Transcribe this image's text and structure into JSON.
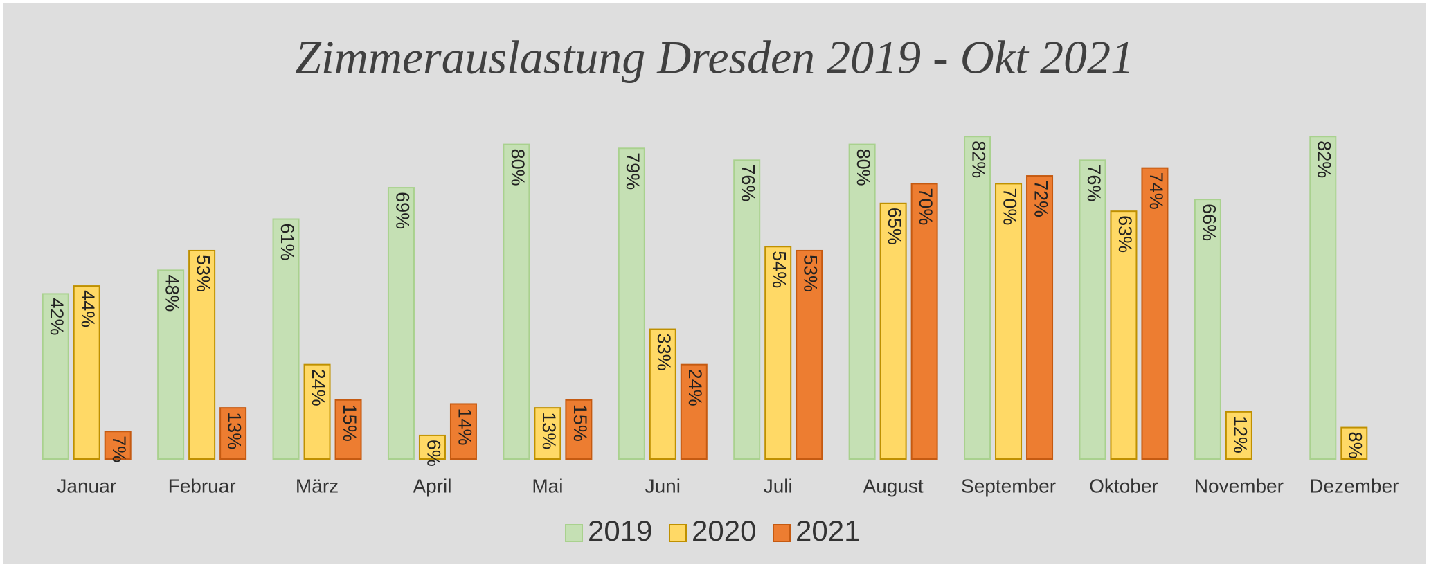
{
  "chart_data": {
    "type": "bar",
    "title": "Zimmerauslastung Dresden 2019 - Okt 2021",
    "categories": [
      "Januar",
      "Februar",
      "März",
      "April",
      "Mai",
      "Juni",
      "Juli",
      "August",
      "September",
      "Oktober",
      "November",
      "Dezember"
    ],
    "series": [
      {
        "name": "2019",
        "color": "#c5e0b4",
        "values": [
          42,
          48,
          61,
          69,
          80,
          79,
          76,
          80,
          82,
          76,
          66,
          82
        ],
        "value_labels": [
          "42%",
          "48%",
          "61%",
          "69%",
          "80%",
          "79%",
          "76%",
          "80%",
          "82%",
          "76%",
          "66%",
          "82%"
        ]
      },
      {
        "name": "2020",
        "color": "#ffd966",
        "values": [
          44,
          53,
          24,
          6,
          13,
          33,
          54,
          65,
          70,
          63,
          12,
          8
        ],
        "value_labels": [
          "44%",
          "53%",
          "24%",
          "6%",
          "13%",
          "33%",
          "54%",
          "65%",
          "70%",
          "63%",
          "12%",
          "8%"
        ]
      },
      {
        "name": "2021",
        "color": "#ed7d31",
        "values": [
          7,
          13,
          15,
          14,
          15,
          24,
          53,
          70,
          72,
          74,
          null,
          null
        ],
        "value_labels": [
          "7%",
          "13%",
          "15%",
          "14%",
          "15%",
          "24%",
          "53%",
          "70%",
          "72%",
          "74%",
          null,
          null
        ]
      }
    ],
    "ylim": [
      0,
      100
    ],
    "legend": "bottom"
  }
}
